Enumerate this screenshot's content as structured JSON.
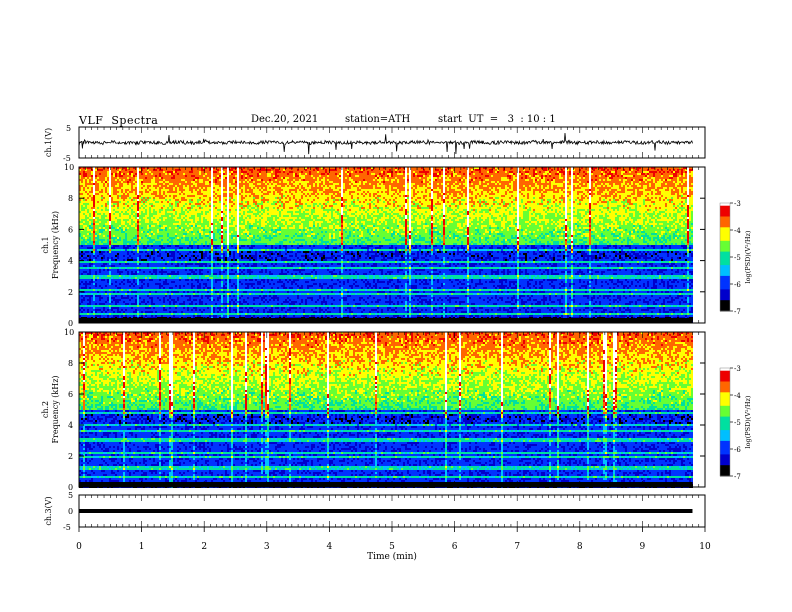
{
  "header": {
    "title": "VLF  Spectra",
    "date": "Dec.20, 2021",
    "station": "station=ATH",
    "start_ut": "start  UT  =   3  : 10 : 1"
  },
  "colors": {
    "background": "#ffffff",
    "frame": "#000000",
    "colormap": [
      "#000000",
      "#0000cc",
      "#0033ff",
      "#00bfff",
      "#00e0a0",
      "#66ff33",
      "#ffff00",
      "#ff6600",
      "#ee0000",
      "#ffffff"
    ]
  },
  "chart_data": [
    {
      "type": "line",
      "panel": "ch1-waveform",
      "ylabel": "ch.1(V)",
      "ylim": [
        -5,
        5
      ],
      "yticks": [
        "5",
        "-5"
      ],
      "xlim": [
        0,
        10
      ],
      "x_end": 9.8,
      "amplitude_v": 0.9
    },
    {
      "type": "heatmap",
      "panel": "ch1-spectrogram",
      "ylabel_line1": "ch.1",
      "ylabel_line2": "Frequency  (kHz)",
      "ylim": [
        0,
        10
      ],
      "yticks": [
        "0",
        "2",
        "4",
        "6",
        "8",
        "10"
      ],
      "xlim": [
        0,
        10
      ],
      "x_end": 9.8,
      "colorbar": {
        "label": "log(PSD)(V²/Hz)",
        "range": [
          -7,
          -3
        ],
        "ticks": [
          "-3",
          "-4",
          "-5",
          "-6",
          "-7"
        ]
      }
    },
    {
      "type": "heatmap",
      "panel": "ch2-spectrogram",
      "ylabel_line1": "ch.2",
      "ylabel_line2": "Frequency  (kHz)",
      "ylim": [
        0,
        10
      ],
      "yticks": [
        "0",
        "2",
        "4",
        "6",
        "8",
        "10"
      ],
      "xlim": [
        0,
        10
      ],
      "x_end": 9.8,
      "colorbar": {
        "label": "log(PSD)(V²/Hz)",
        "range": [
          -7,
          -3
        ],
        "ticks": [
          "-3",
          "-4",
          "-5",
          "-6",
          "-7"
        ]
      }
    },
    {
      "type": "line",
      "panel": "ch3-waveform",
      "ylabel": "ch.3(V)",
      "ylim": [
        -5,
        5
      ],
      "yticks": [
        "5",
        "0",
        "-5"
      ],
      "xlim": [
        0,
        10
      ],
      "x_end": 9.8,
      "level_v": 0
    }
  ],
  "xaxis": {
    "label": "Time  (min)",
    "ticks": [
      "0",
      "1",
      "2",
      "3",
      "4",
      "5",
      "6",
      "7",
      "8",
      "9",
      "10"
    ]
  }
}
